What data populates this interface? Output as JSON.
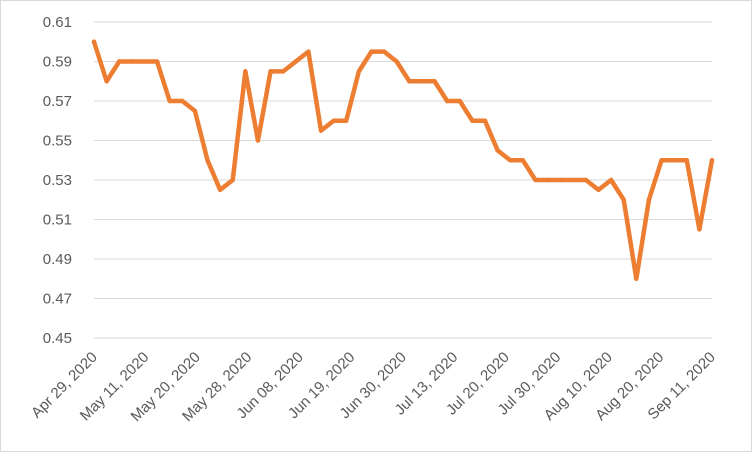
{
  "chart_data": {
    "type": "line",
    "title": "",
    "xlabel": "",
    "ylabel": "",
    "ylim": [
      0.45,
      0.61
    ],
    "y_ticks": [
      0.45,
      0.47,
      0.49,
      0.51,
      0.53,
      0.55,
      0.57,
      0.59,
      0.61
    ],
    "y_tick_labels": [
      "0.45",
      "0.47",
      "0.49",
      "0.51",
      "0.53",
      "0.55",
      "0.57",
      "0.59",
      "0.61"
    ],
    "x_tick_labels": [
      "Apr 29, 2020",
      "May 11, 2020",
      "May 20, 2020",
      "May 28, 2020",
      "Jun 08, 2020",
      "Jun 19, 2020",
      "Jun 30, 2020",
      "Jul 13, 2020",
      "Jul 20, 2020",
      "Jul 30, 2020",
      "Aug 10, 2020",
      "Aug 20, 2020",
      "Sep 11, 2020"
    ],
    "grid": true,
    "legend": "none",
    "series": [
      {
        "color": "#ED7D31",
        "values": [
          0.6,
          0.58,
          0.59,
          0.59,
          0.59,
          0.59,
          0.57,
          0.57,
          0.565,
          0.54,
          0.525,
          0.53,
          0.585,
          0.55,
          0.585,
          0.585,
          0.59,
          0.595,
          0.555,
          0.56,
          0.56,
          0.585,
          0.595,
          0.595,
          0.59,
          0.58,
          0.58,
          0.58,
          0.57,
          0.57,
          0.56,
          0.56,
          0.545,
          0.54,
          0.54,
          0.53,
          0.53,
          0.53,
          0.53,
          0.53,
          0.525,
          0.53,
          0.52,
          0.48,
          0.52,
          0.54,
          0.54,
          0.54,
          0.505,
          0.54
        ]
      }
    ]
  }
}
